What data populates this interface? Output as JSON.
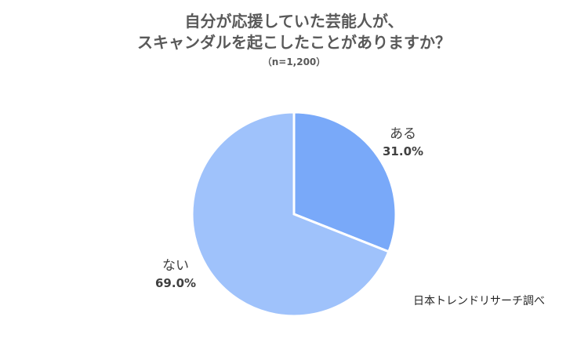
{
  "title_lines": [
    "自分が応援していた芸能人が、",
    "スキャンダルを起こしたことがありますか？"
  ],
  "subtitle": "（n=1,200）",
  "source": "日本トレンドリサーチ調べ",
  "chart_data": {
    "type": "pie",
    "title": "自分が応援していた芸能人が、スキャンダルを起こしたことがありますか？",
    "slices": [
      {
        "label": "ある",
        "value": 31.0,
        "display": "31.0%",
        "color": "#79a9f9"
      },
      {
        "label": "ない",
        "value": 69.0,
        "display": "69.0%",
        "color": "#9fc2fb"
      }
    ],
    "start_angle": "12 o'clock",
    "direction": "clockwise",
    "legend": "none (labels beside slices)"
  }
}
